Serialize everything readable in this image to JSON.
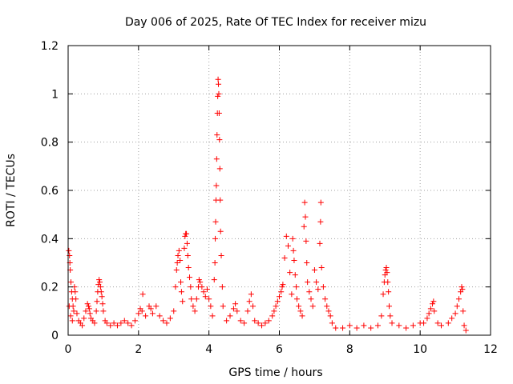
{
  "chart_data": {
    "type": "scatter",
    "title": "Day 006 of 2025, Rate Of TEC Index for receiver mizu",
    "xlabel": "GPS time / hours",
    "ylabel": "ROTI / TECUs",
    "xlim": [
      0,
      12
    ],
    "ylim": [
      0,
      1.2
    ],
    "xticks": [
      "0",
      "2",
      "4",
      "6",
      "8",
      "10",
      "12"
    ],
    "yticks": [
      "0",
      "0.2",
      "0.4",
      "0.6",
      "0.8",
      "1",
      "1.2"
    ],
    "grid": true,
    "marker": "plus",
    "color": "#ff0000",
    "series": [
      {
        "points": [
          [
            0.02,
            0.35
          ],
          [
            0.04,
            0.33
          ],
          [
            0.05,
            0.3
          ],
          [
            0.06,
            0.27
          ],
          [
            0.08,
            0.22
          ],
          [
            0.1,
            0.18
          ],
          [
            0.12,
            0.15
          ],
          [
            0.14,
            0.12
          ],
          [
            0.16,
            0.1
          ],
          [
            0.03,
            0.12
          ],
          [
            0.07,
            0.08
          ],
          [
            0.12,
            0.06
          ],
          [
            0.18,
            0.2
          ],
          [
            0.2,
            0.18
          ],
          [
            0.22,
            0.15
          ],
          [
            0.25,
            0.09
          ],
          [
            0.3,
            0.06
          ],
          [
            0.35,
            0.05
          ],
          [
            0.4,
            0.04
          ],
          [
            0.45,
            0.07
          ],
          [
            0.5,
            0.1
          ],
          [
            0.55,
            0.13
          ],
          [
            0.58,
            0.12
          ],
          [
            0.6,
            0.11
          ],
          [
            0.62,
            0.09
          ],
          [
            0.65,
            0.07
          ],
          [
            0.7,
            0.06
          ],
          [
            0.75,
            0.05
          ],
          [
            0.8,
            0.1
          ],
          [
            0.82,
            0.14
          ],
          [
            0.84,
            0.18
          ],
          [
            0.86,
            0.21
          ],
          [
            0.88,
            0.23
          ],
          [
            0.9,
            0.22
          ],
          [
            0.92,
            0.2
          ],
          [
            0.94,
            0.18
          ],
          [
            0.96,
            0.16
          ],
          [
            0.98,
            0.13
          ],
          [
            1.0,
            0.1
          ],
          [
            1.05,
            0.06
          ],
          [
            1.1,
            0.05
          ],
          [
            1.2,
            0.04
          ],
          [
            1.3,
            0.05
          ],
          [
            1.4,
            0.04
          ],
          [
            1.5,
            0.05
          ],
          [
            1.6,
            0.06
          ],
          [
            1.7,
            0.05
          ],
          [
            1.8,
            0.04
          ],
          [
            1.9,
            0.06
          ],
          [
            2.0,
            0.09
          ],
          [
            2.05,
            0.11
          ],
          [
            2.1,
            0.1
          ],
          [
            2.12,
            0.17
          ],
          [
            2.2,
            0.08
          ],
          [
            2.3,
            0.12
          ],
          [
            2.35,
            0.11
          ],
          [
            2.4,
            0.09
          ],
          [
            2.5,
            0.12
          ],
          [
            2.6,
            0.08
          ],
          [
            2.7,
            0.06
          ],
          [
            2.8,
            0.05
          ],
          [
            2.9,
            0.07
          ],
          [
            3.0,
            0.1
          ],
          [
            3.05,
            0.2
          ],
          [
            3.08,
            0.27
          ],
          [
            3.1,
            0.3
          ],
          [
            3.12,
            0.33
          ],
          [
            3.15,
            0.35
          ],
          [
            3.18,
            0.31
          ],
          [
            3.2,
            0.22
          ],
          [
            3.22,
            0.18
          ],
          [
            3.25,
            0.14
          ],
          [
            3.3,
            0.36
          ],
          [
            3.32,
            0.41
          ],
          [
            3.34,
            0.42
          ],
          [
            3.36,
            0.42
          ],
          [
            3.38,
            0.38
          ],
          [
            3.4,
            0.33
          ],
          [
            3.42,
            0.28
          ],
          [
            3.45,
            0.24
          ],
          [
            3.48,
            0.2
          ],
          [
            3.5,
            0.15
          ],
          [
            3.55,
            0.12
          ],
          [
            3.6,
            0.1
          ],
          [
            3.65,
            0.15
          ],
          [
            3.7,
            0.2
          ],
          [
            3.72,
            0.23
          ],
          [
            3.75,
            0.22
          ],
          [
            3.8,
            0.2
          ],
          [
            3.85,
            0.18
          ],
          [
            3.9,
            0.16
          ],
          [
            3.95,
            0.19
          ],
          [
            4.0,
            0.15
          ],
          [
            4.05,
            0.12
          ],
          [
            4.1,
            0.08
          ],
          [
            4.15,
            0.23
          ],
          [
            4.17,
            0.3
          ],
          [
            4.18,
            0.4
          ],
          [
            4.19,
            0.47
          ],
          [
            4.2,
            0.56
          ],
          [
            4.21,
            0.62
          ],
          [
            4.22,
            0.73
          ],
          [
            4.23,
            0.83
          ],
          [
            4.24,
            0.92
          ],
          [
            4.25,
            0.99
          ],
          [
            4.26,
            1.06
          ],
          [
            4.27,
            1.04
          ],
          [
            4.28,
            1.0
          ],
          [
            4.29,
            0.92
          ],
          [
            4.3,
            0.81
          ],
          [
            4.31,
            0.69
          ],
          [
            4.32,
            0.56
          ],
          [
            4.33,
            0.43
          ],
          [
            4.35,
            0.33
          ],
          [
            4.38,
            0.2
          ],
          [
            4.4,
            0.12
          ],
          [
            4.5,
            0.06
          ],
          [
            4.6,
            0.08
          ],
          [
            4.7,
            0.11
          ],
          [
            4.75,
            0.13
          ],
          [
            4.8,
            0.1
          ],
          [
            4.9,
            0.06
          ],
          [
            5.0,
            0.05
          ],
          [
            5.1,
            0.1
          ],
          [
            5.15,
            0.14
          ],
          [
            5.2,
            0.17
          ],
          [
            5.25,
            0.12
          ],
          [
            5.3,
            0.06
          ],
          [
            5.4,
            0.05
          ],
          [
            5.5,
            0.04
          ],
          [
            5.6,
            0.05
          ],
          [
            5.7,
            0.06
          ],
          [
            5.8,
            0.08
          ],
          [
            5.85,
            0.1
          ],
          [
            5.9,
            0.12
          ],
          [
            5.95,
            0.14
          ],
          [
            6.0,
            0.16
          ],
          [
            6.05,
            0.18
          ],
          [
            6.08,
            0.2
          ],
          [
            6.1,
            0.21
          ],
          [
            6.15,
            0.32
          ],
          [
            6.2,
            0.41
          ],
          [
            6.25,
            0.37
          ],
          [
            6.3,
            0.26
          ],
          [
            6.35,
            0.17
          ],
          [
            6.38,
            0.4
          ],
          [
            6.4,
            0.35
          ],
          [
            6.42,
            0.31
          ],
          [
            6.45,
            0.25
          ],
          [
            6.48,
            0.2
          ],
          [
            6.5,
            0.15
          ],
          [
            6.55,
            0.12
          ],
          [
            6.6,
            0.1
          ],
          [
            6.65,
            0.08
          ],
          [
            6.7,
            0.45
          ],
          [
            6.72,
            0.55
          ],
          [
            6.74,
            0.49
          ],
          [
            6.76,
            0.39
          ],
          [
            6.78,
            0.3
          ],
          [
            6.8,
            0.22
          ],
          [
            6.85,
            0.18
          ],
          [
            6.9,
            0.15
          ],
          [
            6.95,
            0.12
          ],
          [
            7.0,
            0.27
          ],
          [
            7.05,
            0.22
          ],
          [
            7.1,
            0.19
          ],
          [
            7.15,
            0.38
          ],
          [
            7.17,
            0.47
          ],
          [
            7.18,
            0.55
          ],
          [
            7.2,
            0.28
          ],
          [
            7.25,
            0.2
          ],
          [
            7.3,
            0.15
          ],
          [
            7.35,
            0.12
          ],
          [
            7.4,
            0.1
          ],
          [
            7.45,
            0.08
          ],
          [
            7.5,
            0.05
          ],
          [
            7.6,
            0.03
          ],
          [
            7.8,
            0.03
          ],
          [
            8.0,
            0.04
          ],
          [
            8.2,
            0.03
          ],
          [
            8.4,
            0.04
          ],
          [
            8.6,
            0.03
          ],
          [
            8.8,
            0.04
          ],
          [
            8.9,
            0.08
          ],
          [
            8.95,
            0.17
          ],
          [
            8.98,
            0.22
          ],
          [
            9.0,
            0.25
          ],
          [
            9.02,
            0.27
          ],
          [
            9.04,
            0.28
          ],
          [
            9.06,
            0.26
          ],
          [
            9.08,
            0.22
          ],
          [
            9.1,
            0.18
          ],
          [
            9.12,
            0.12
          ],
          [
            9.15,
            0.08
          ],
          [
            9.2,
            0.05
          ],
          [
            9.4,
            0.04
          ],
          [
            9.6,
            0.03
          ],
          [
            9.8,
            0.04
          ],
          [
            10.0,
            0.05
          ],
          [
            10.1,
            0.05
          ],
          [
            10.2,
            0.07
          ],
          [
            10.25,
            0.09
          ],
          [
            10.3,
            0.11
          ],
          [
            10.35,
            0.13
          ],
          [
            10.38,
            0.14
          ],
          [
            10.4,
            0.1
          ],
          [
            10.5,
            0.05
          ],
          [
            10.6,
            0.04
          ],
          [
            10.8,
            0.05
          ],
          [
            10.9,
            0.07
          ],
          [
            11.0,
            0.09
          ],
          [
            11.05,
            0.12
          ],
          [
            11.1,
            0.15
          ],
          [
            11.15,
            0.18
          ],
          [
            11.18,
            0.2
          ],
          [
            11.2,
            0.19
          ],
          [
            11.22,
            0.1
          ],
          [
            11.25,
            0.04
          ],
          [
            11.3,
            0.02
          ]
        ]
      }
    ]
  }
}
